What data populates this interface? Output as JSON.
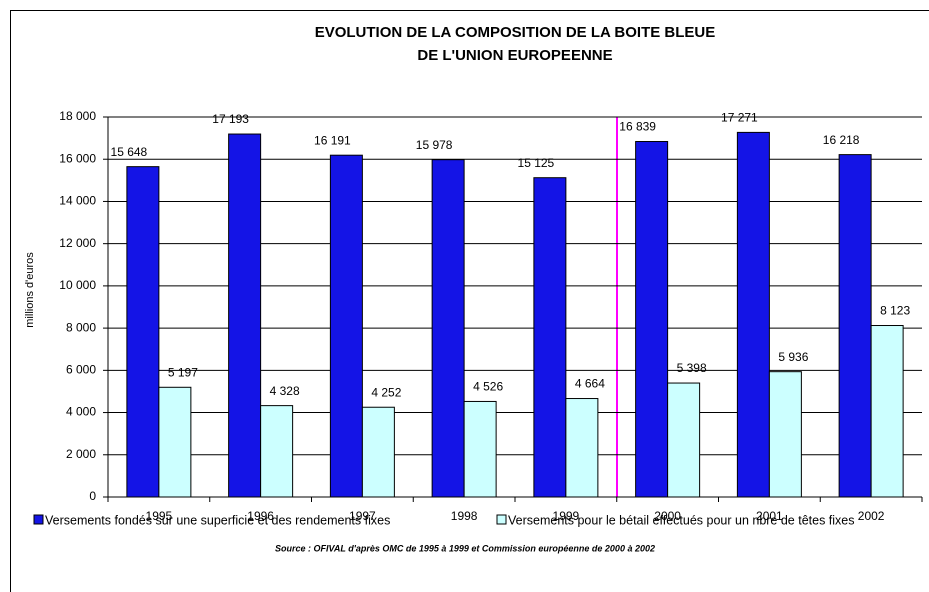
{
  "chart_data": {
    "type": "bar",
    "title": "EVOLUTION DE LA COMPOSITION DE LA BOITE BLEUE",
    "subtitle": "DE L'UNION EUROPEENNE",
    "y_label": "millions d'euros",
    "source": "Source : OFIVAL d'après OMC de 1995 à 1999 et Commission européenne de 2000 à 2002",
    "categories": [
      "1995",
      "1996",
      "1997",
      "1998",
      "1999",
      "2000",
      "2001",
      "2002"
    ],
    "series": [
      {
        "name": "Versements fondés sur une superficie et des rendements fixes",
        "color": "#1414e6",
        "values": [
          15648,
          17193,
          16191,
          15978,
          15125,
          16839,
          17271,
          16218
        ],
        "value_labels": [
          "15 648",
          "17 193",
          "16 191",
          "15 978",
          "15 125",
          "16 839",
          "17 271",
          "16 218"
        ]
      },
      {
        "name": "Versements pour le bétail effectués pour un nbre de têtes fixes",
        "color": "#ccffff",
        "values": [
          5197,
          4328,
          4252,
          4526,
          4664,
          5398,
          5936,
          8123
        ],
        "value_labels": [
          "5 197",
          "4 328",
          "4 252",
          "4 526",
          "4 664",
          "5 398",
          "5 936",
          "8 123"
        ]
      }
    ],
    "ylim": [
      0,
      18000
    ],
    "yticks": [
      0,
      {
        "value": 2000,
        "label": "2 000"
      },
      {
        "value": 4000,
        "label": "4 000"
      },
      {
        "value": 6000,
        "label": "6 000"
      },
      {
        "value": 8000,
        "label": "8 000"
      },
      {
        "value": 10000,
        "label": "10 000"
      },
      {
        "value": 12000,
        "label": "12 000"
      },
      {
        "value": 14000,
        "label": "14 000"
      },
      {
        "value": 16000,
        "label": "16 000"
      },
      {
        "value": 18000,
        "label": "18 000"
      }
    ],
    "grid": true
  }
}
